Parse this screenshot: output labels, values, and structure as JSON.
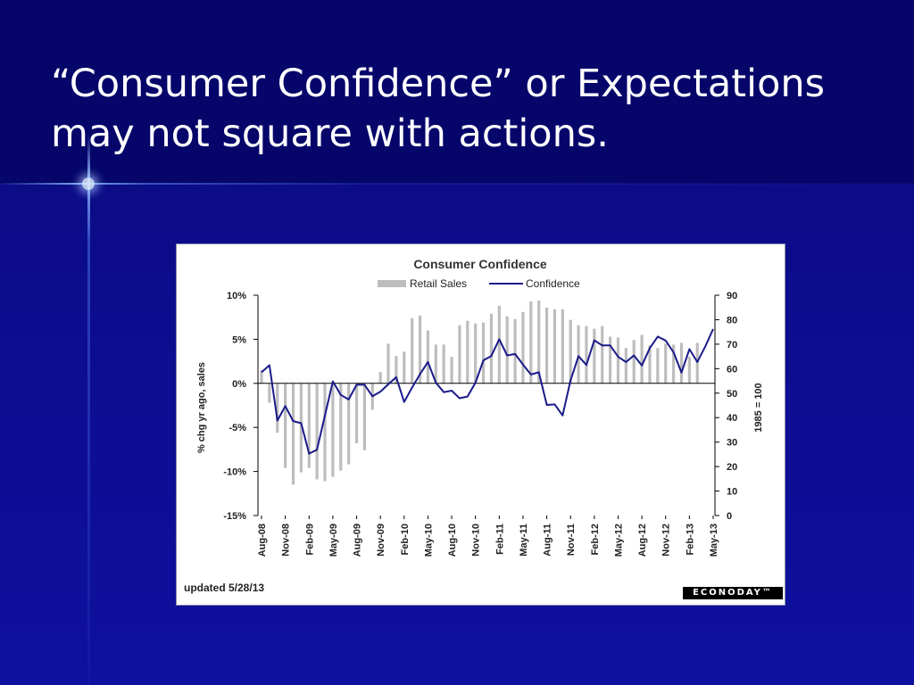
{
  "slide": {
    "title_line1": "“Consumer Confidence” or Expectations",
    "title_line2": "may not square with actions."
  },
  "chart_data": {
    "type": "bar",
    "title": "Consumer Confidence",
    "legend": {
      "placement": "top-center",
      "bar_label": "Retail Sales",
      "line_label": "Confidence"
    },
    "ylabel_left": "% chg yr ago, sales",
    "ylabel_right": "1985 = 100",
    "ylim_left": [
      -15,
      10
    ],
    "ylim_right": [
      0,
      90
    ],
    "left_ticks": [
      "10%",
      "5%",
      "0%",
      "-5%",
      "-10%",
      "-15%"
    ],
    "right_ticks": [
      "90",
      "80",
      "70",
      "60",
      "50",
      "40",
      "30",
      "20",
      "10",
      "0"
    ],
    "x_tick_labels": [
      "Aug-08",
      "Nov-08",
      "Feb-09",
      "May-09",
      "Aug-09",
      "Nov-09",
      "Feb-10",
      "May-10",
      "Aug-10",
      "Nov-10",
      "Feb-11",
      "May-11",
      "Aug-11",
      "Nov-11",
      "Feb-12",
      "May-12",
      "Aug-12",
      "Nov-12",
      "Feb-13",
      "May-13"
    ],
    "series": [
      {
        "name": "Retail Sales",
        "type": "bar",
        "axis": "left",
        "color": "#bdbdbd",
        "values": [
          1.5,
          -2.2,
          -5.6,
          -9.6,
          -11.5,
          -10.1,
          -9.6,
          -10.9,
          -11.1,
          -10.6,
          -9.9,
          -9.2,
          -6.8,
          -7.6,
          -3.0,
          1.3,
          4.5,
          3.1,
          3.6,
          7.4,
          7.7,
          6.0,
          4.4,
          4.4,
          3.0,
          6.6,
          7.1,
          6.8,
          6.9,
          7.9,
          8.8,
          7.6,
          7.3,
          8.1,
          9.3,
          9.4,
          8.6,
          8.4,
          8.4,
          7.2,
          6.6,
          6.5,
          6.2,
          6.5,
          5.3,
          5.2,
          4.0,
          4.9,
          5.5,
          4.3,
          4.0,
          4.5,
          4.4,
          4.6,
          3.0,
          4.6
        ]
      },
      {
        "name": "Confidence",
        "type": "line",
        "axis": "right",
        "color": "#1a1a8a",
        "values": [
          58.5,
          61.4,
          38.8,
          44.7,
          38.6,
          37.7,
          25.3,
          26.9,
          40.8,
          54.8,
          49.3,
          47.4,
          53.4,
          53.4,
          48.7,
          50.6,
          53.6,
          56.5,
          46.4,
          52.3,
          57.7,
          62.7,
          54.3,
          50.4,
          51.0,
          47.9,
          48.6,
          54.3,
          63.4,
          65.2,
          72.0,
          65.4,
          66.0,
          61.7,
          57.6,
          58.5,
          45.2,
          45.4,
          40.9,
          55.2,
          65.1,
          61.5,
          71.6,
          69.5,
          69.5,
          64.9,
          62.7,
          65.4,
          61.3,
          68.4,
          73.1,
          71.5,
          66.7,
          58.4,
          68.0,
          62.7,
          69.0,
          76.2
        ]
      }
    ],
    "footnote": "updated 5/28/13",
    "brand": "ECONODAY"
  }
}
